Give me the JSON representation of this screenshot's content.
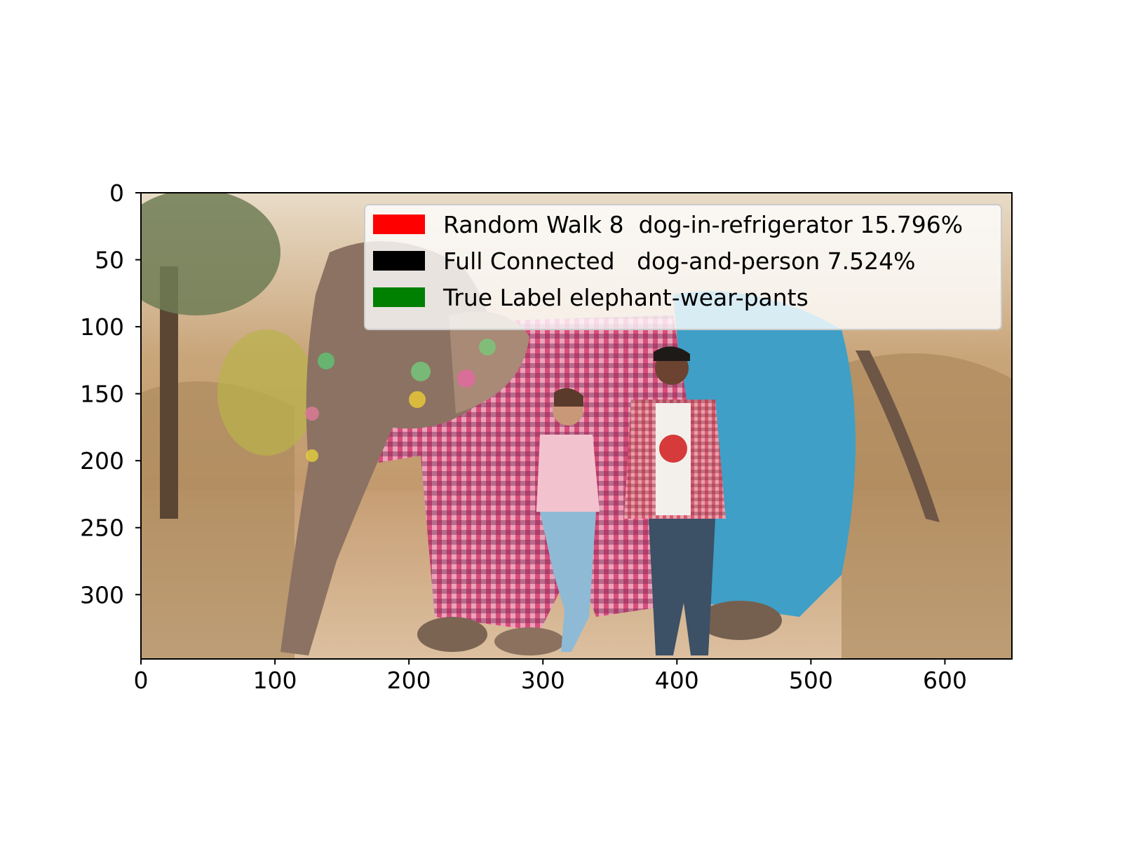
{
  "chart_data": {
    "type": "image",
    "title": "",
    "xlabel": "",
    "ylabel": "",
    "xlim": [
      0,
      650
    ],
    "ylim": [
      348,
      0
    ],
    "xticks": [
      0,
      100,
      200,
      300,
      400,
      500,
      600
    ],
    "yticks": [
      0,
      50,
      100,
      150,
      200,
      250,
      300
    ],
    "legend": {
      "placement": "top-right",
      "entries": [
        {
          "label": "Random Walk 8  dog-in-refrigerator 15.796%",
          "color": "#ff0000"
        },
        {
          "label": "Full Connected   dog-and-person 7.524%",
          "color": "#000000"
        },
        {
          "label": "True Label elephant-wear-pants",
          "color": "#008000"
        }
      ]
    },
    "image_content": "photo-elephant-wearing-checked-pants-with-two-people"
  }
}
